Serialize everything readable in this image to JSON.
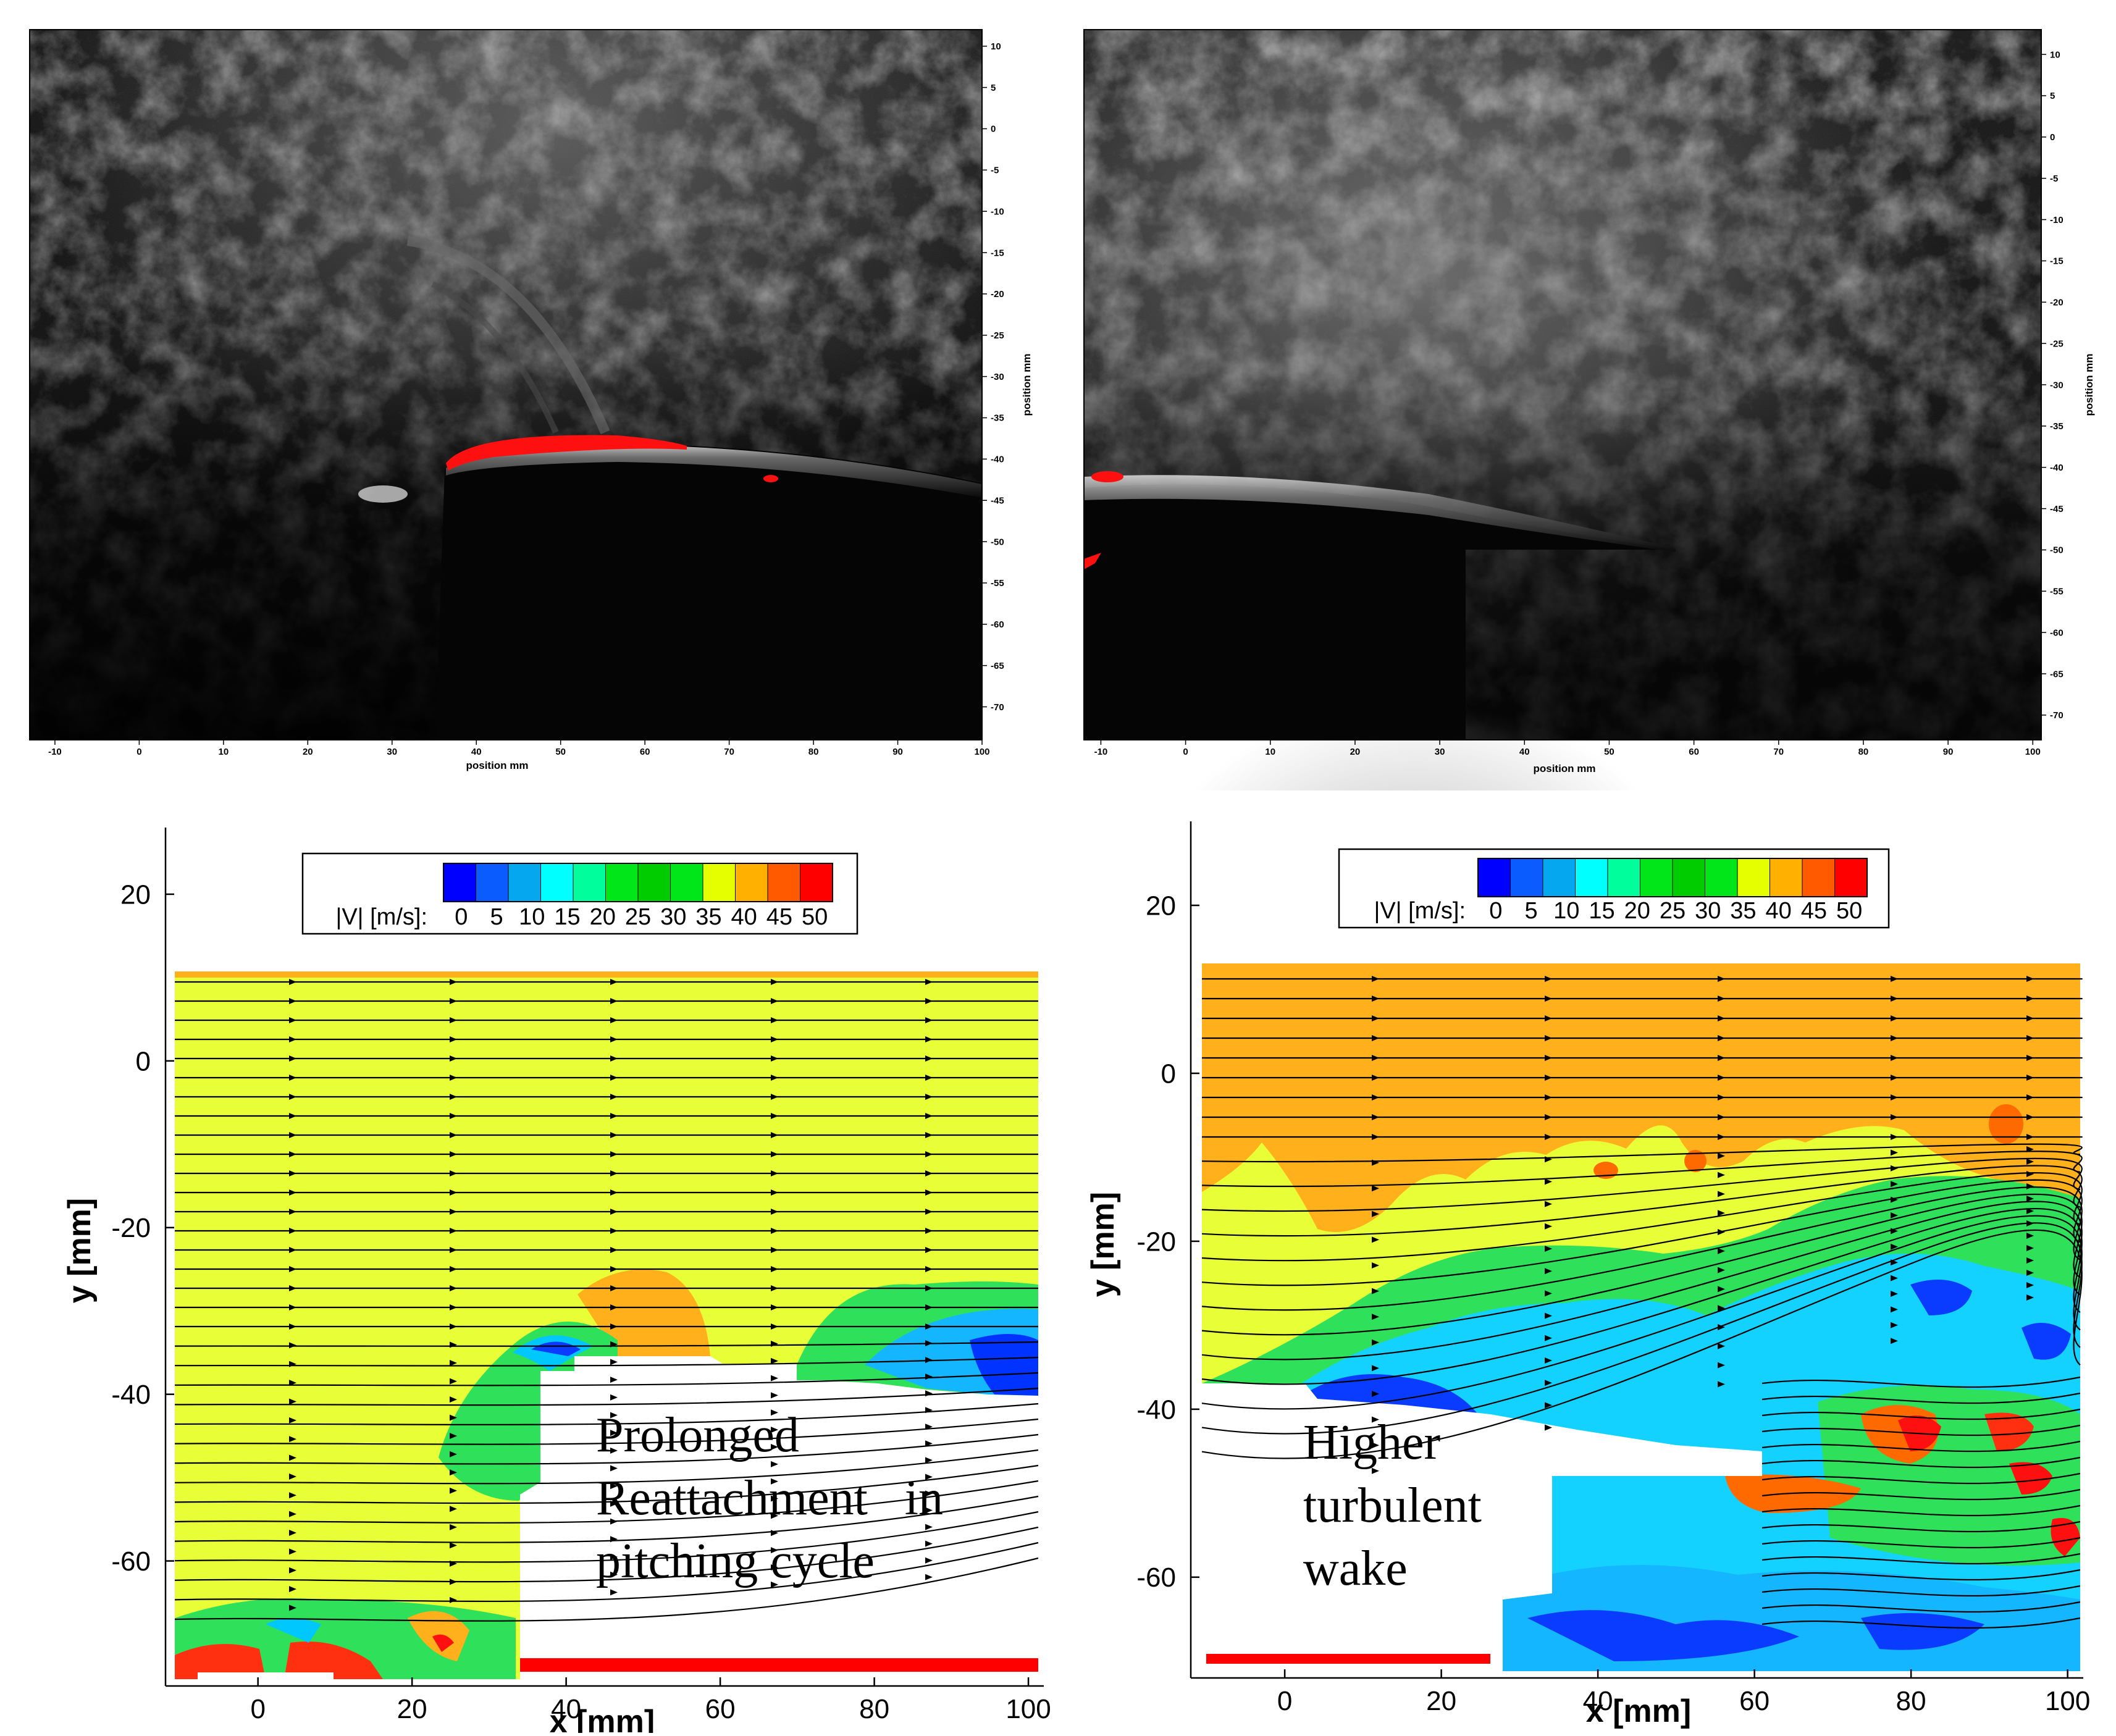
{
  "chart_data": [
    {
      "type": "heatmap",
      "panel": "top-left",
      "description_source": "PIV raw particle image",
      "xlabel": "position mm",
      "ylabel": "position mm",
      "xticks": [
        "-10",
        "0",
        "10",
        "20",
        "30",
        "40",
        "50",
        "60",
        "70",
        "80",
        "90",
        "100"
      ],
      "yticks": [
        "10",
        "5",
        "0",
        "-5",
        "-10",
        "-15",
        "-20",
        "-25",
        "-30",
        "-35",
        "-40",
        "-45",
        "-50",
        "-55",
        "-60",
        "-65",
        "-70"
      ],
      "xlim": [
        -13,
        100
      ],
      "ylim": [
        -74,
        12
      ],
      "tick_values_x": [
        -10,
        0,
        10,
        20,
        30,
        40,
        50,
        60,
        70,
        80,
        90,
        100
      ],
      "tick_values_y": [
        10,
        5,
        0,
        -5,
        -10,
        -15,
        -20,
        -25,
        -30,
        -35,
        -40,
        -45,
        -50,
        -55,
        -60,
        -65,
        -70
      ],
      "airfoil_leading_edge": [
        37,
        -41
      ],
      "airfoil_trailing_edge": [
        100,
        -45
      ]
    },
    {
      "type": "heatmap",
      "panel": "top-right",
      "xlabel": "position mm",
      "ylabel": "position mm",
      "xticks": [
        "-10",
        "0",
        "10",
        "20",
        "30",
        "40",
        "50",
        "60",
        "70",
        "80",
        "90",
        "100"
      ],
      "yticks": [
        "10",
        "5",
        "0",
        "-5",
        "-10",
        "-15",
        "-20",
        "-25",
        "-30",
        "-35",
        "-40",
        "-45",
        "-50",
        "-55",
        "-60",
        "-65",
        "-70"
      ],
      "xlim": [
        -12,
        101
      ],
      "ylim": [
        -73,
        13
      ],
      "tick_values_x": [
        -10,
        0,
        10,
        20,
        30,
        40,
        50,
        60,
        70,
        80,
        90,
        100
      ],
      "tick_values_y": [
        10,
        5,
        0,
        -5,
        -10,
        -15,
        -20,
        -25,
        -30,
        -35,
        -40,
        -45,
        -50,
        -55,
        -60,
        -65,
        -70
      ],
      "airfoil_leading_edge": [
        -12,
        -40
      ],
      "airfoil_trailing_edge": [
        58,
        -50
      ]
    },
    {
      "type": "heatmap",
      "panel": "bottom-left",
      "xlabel": "x [mm]",
      "ylabel": "y [mm]",
      "xticks": [
        "0",
        "20",
        "40",
        "60",
        "80",
        "100"
      ],
      "yticks": [
        "20",
        "0",
        "-20",
        "-40",
        "-60"
      ],
      "tick_values_x": [
        0,
        20,
        40,
        60,
        80,
        100
      ],
      "tick_values_y": [
        20,
        0,
        -20,
        -40,
        -60
      ],
      "xlim": [
        -12,
        102
      ],
      "ylim": [
        -75,
        28
      ],
      "colorbar_label": "|V| [m/s]:",
      "colorbar_ticks": [
        "0",
        "5",
        "10",
        "15",
        "20",
        "25",
        "30",
        "35",
        "40",
        "45",
        "50"
      ],
      "colorbar_range": [
        0,
        50
      ],
      "annotation": [
        "Prolonged",
        "Reattachment   in",
        "pitching cycle"
      ]
    },
    {
      "type": "heatmap",
      "panel": "bottom-right",
      "xlabel": "x [mm]",
      "ylabel": "y [mm]",
      "xticks": [
        "0",
        "20",
        "40",
        "60",
        "80",
        "100"
      ],
      "yticks": [
        "20",
        "0",
        "-20",
        "-40",
        "-60"
      ],
      "tick_values_x": [
        0,
        20,
        40,
        60,
        80,
        100
      ],
      "tick_values_y": [
        20,
        0,
        -20,
        -40,
        -60
      ],
      "xlim": [
        -12,
        102
      ],
      "ylim": [
        -72,
        30
      ],
      "colorbar_label": "|V| [m/s]:",
      "colorbar_ticks": [
        "0",
        "5",
        "10",
        "15",
        "20",
        "25",
        "30",
        "35",
        "40",
        "45",
        "50"
      ],
      "colorbar_range": [
        0,
        50
      ],
      "annotation": [
        "Higher",
        "turbulent",
        "wake"
      ]
    }
  ],
  "colors": {
    "colormap": [
      "#0000ff",
      "#0b5cff",
      "#05a8ef",
      "#00ffff",
      "#00ff9c",
      "#00e619",
      "#00cc00",
      "#00e619",
      "#e6ff00",
      "#ffb000",
      "#ff5a00",
      "#ff0000"
    ],
    "freestream_left": "#e8ff38",
    "freestream_right": "#ffb01a",
    "airfoil_marker": "#ff0000"
  }
}
